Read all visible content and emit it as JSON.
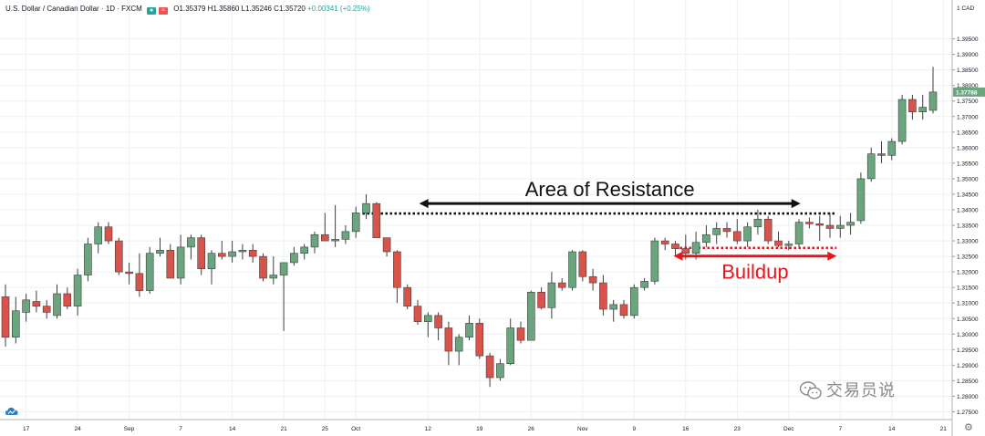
{
  "header": {
    "symbol": "U.S. Dollar / Canadian Dollar · 1D · FXCM",
    "ohlc": "O1.35379 H1.35860 L1.35246 C1.35720",
    "change": "+0.00341 (+0.25%)"
  },
  "icons": {
    "logo": "tradingview-cloud-icon",
    "settings": "gear-icon",
    "watermark": "wechat-icon"
  },
  "watermark": "交易员说",
  "colors": {
    "up": "#6aa57e",
    "down": "#d9534a",
    "candle_border": "#3f3f3f",
    "resistance": "#111111",
    "buildup": "#e8141b",
    "current_price_tag": "#6aa57e"
  },
  "chart_data": {
    "type": "candlestick",
    "currency_label": "CAD",
    "price_axis": {
      "range": [
        1.2725,
        1.4075
      ],
      "ticks": [
        "1.27500",
        "1.28000",
        "1.28500",
        "1.29000",
        "1.29500",
        "1.30000",
        "1.30500",
        "1.31000",
        "1.31500",
        "1.32000",
        "1.32500",
        "1.33000",
        "1.33500",
        "1.34000",
        "1.34500",
        "1.35000",
        "1.35500",
        "1.36000",
        "1.36500",
        "1.37000",
        "1.37500",
        "1.38000",
        "1.38500",
        "1.39000",
        "1.39500"
      ],
      "current_price_label": "1.37788",
      "current_price": 1.37788
    },
    "x_axis_labels": [
      {
        "label": "17",
        "index": 2
      },
      {
        "label": "24",
        "index": 7
      },
      {
        "label": "Sep",
        "index": 12
      },
      {
        "label": "7",
        "index": 17
      },
      {
        "label": "14",
        "index": 22
      },
      {
        "label": "21",
        "index": 27
      },
      {
        "label": "25",
        "index": 31
      },
      {
        "label": "Oct",
        "index": 34
      },
      {
        "label": "12",
        "index": 41
      },
      {
        "label": "19",
        "index": 46
      },
      {
        "label": "26",
        "index": 51
      },
      {
        "label": "Nov",
        "index": 56
      },
      {
        "label": "9",
        "index": 61
      },
      {
        "label": "16",
        "index": 66
      },
      {
        "label": "23",
        "index": 71
      },
      {
        "label": "Dec",
        "index": 76
      },
      {
        "label": "7",
        "index": 81
      },
      {
        "label": "14",
        "index": 86
      },
      {
        "label": "21",
        "index": 91
      }
    ],
    "candles": [
      [
        1.312,
        1.316,
        1.296,
        1.299
      ],
      [
        1.299,
        1.312,
        1.297,
        1.3075
      ],
      [
        1.307,
        1.313,
        1.304,
        1.311
      ],
      [
        1.3105,
        1.314,
        1.307,
        1.309
      ],
      [
        1.309,
        1.311,
        1.305,
        1.307
      ],
      [
        1.306,
        1.316,
        1.305,
        1.313
      ],
      [
        1.313,
        1.315,
        1.308,
        1.309
      ],
      [
        1.309,
        1.321,
        1.306,
        1.319
      ],
      [
        1.319,
        1.331,
        1.317,
        1.329
      ],
      [
        1.329,
        1.336,
        1.326,
        1.3345
      ],
      [
        1.3345,
        1.336,
        1.329,
        1.33
      ],
      [
        1.33,
        1.331,
        1.319,
        1.32
      ],
      [
        1.32,
        1.323,
        1.316,
        1.3195
      ],
      [
        1.3195,
        1.326,
        1.312,
        1.314
      ],
      [
        1.314,
        1.328,
        1.313,
        1.326
      ],
      [
        1.326,
        1.331,
        1.325,
        1.327
      ],
      [
        1.327,
        1.329,
        1.318,
        1.318
      ],
      [
        1.318,
        1.332,
        1.316,
        1.328
      ],
      [
        1.328,
        1.332,
        1.324,
        1.331
      ],
      [
        1.331,
        1.332,
        1.319,
        1.321
      ],
      [
        1.321,
        1.327,
        1.316,
        1.326
      ],
      [
        1.326,
        1.33,
        1.324,
        1.325
      ],
      [
        1.325,
        1.33,
        1.323,
        1.3265
      ],
      [
        1.3265,
        1.329,
        1.324,
        1.327
      ],
      [
        1.327,
        1.329,
        1.323,
        1.325
      ],
      [
        1.325,
        1.326,
        1.317,
        1.318
      ],
      [
        1.318,
        1.325,
        1.316,
        1.319
      ],
      [
        1.319,
        1.323,
        1.301,
        1.323
      ],
      [
        1.323,
        1.328,
        1.322,
        1.326
      ],
      [
        1.326,
        1.329,
        1.324,
        1.328
      ],
      [
        1.328,
        1.333,
        1.326,
        1.332
      ],
      [
        1.332,
        1.339,
        1.33,
        1.33
      ],
      [
        1.33,
        1.3415,
        1.328,
        1.3305
      ],
      [
        1.3305,
        1.335,
        1.329,
        1.333
      ],
      [
        1.333,
        1.341,
        1.331,
        1.339
      ],
      [
        1.339,
        1.345,
        1.337,
        1.342
      ],
      [
        1.342,
        1.3425,
        1.331,
        1.331
      ],
      [
        1.331,
        1.331,
        1.325,
        1.3265
      ],
      [
        1.3265,
        1.327,
        1.31,
        1.315
      ],
      [
        1.315,
        1.316,
        1.308,
        1.309
      ],
      [
        1.309,
        1.311,
        1.303,
        1.304
      ],
      [
        1.304,
        1.307,
        1.299,
        1.306
      ],
      [
        1.306,
        1.307,
        1.298,
        1.302
      ],
      [
        1.302,
        1.304,
        1.29,
        1.2945
      ],
      [
        1.2945,
        1.3,
        1.29,
        1.299
      ],
      [
        1.299,
        1.306,
        1.298,
        1.3035
      ],
      [
        1.3035,
        1.305,
        1.292,
        1.293
      ],
      [
        1.293,
        1.294,
        1.283,
        1.286
      ],
      [
        1.286,
        1.292,
        1.285,
        1.2905
      ],
      [
        1.2905,
        1.305,
        1.29,
        1.302
      ],
      [
        1.302,
        1.304,
        1.297,
        1.298
      ],
      [
        1.298,
        1.314,
        1.298,
        1.3135
      ],
      [
        1.3135,
        1.315,
        1.308,
        1.3085
      ],
      [
        1.3085,
        1.32,
        1.305,
        1.3165
      ],
      [
        1.3165,
        1.318,
        1.314,
        1.315
      ],
      [
        1.315,
        1.327,
        1.314,
        1.3265
      ],
      [
        1.3265,
        1.327,
        1.317,
        1.3185
      ],
      [
        1.3185,
        1.321,
        1.314,
        1.3165
      ],
      [
        1.3165,
        1.319,
        1.306,
        1.308
      ],
      [
        1.308,
        1.311,
        1.304,
        1.3095
      ],
      [
        1.3095,
        1.311,
        1.305,
        1.306
      ],
      [
        1.306,
        1.316,
        1.305,
        1.315
      ],
      [
        1.315,
        1.318,
        1.314,
        1.317
      ],
      [
        1.317,
        1.331,
        1.316,
        1.33
      ],
      [
        1.33,
        1.331,
        1.327,
        1.329
      ],
      [
        1.329,
        1.33,
        1.325,
        1.3275
      ],
      [
        1.3275,
        1.332,
        1.324,
        1.326
      ],
      [
        1.326,
        1.333,
        1.324,
        1.3295
      ],
      [
        1.3295,
        1.335,
        1.328,
        1.332
      ],
      [
        1.332,
        1.336,
        1.329,
        1.334
      ],
      [
        1.334,
        1.336,
        1.331,
        1.333
      ],
      [
        1.333,
        1.337,
        1.329,
        1.33
      ],
      [
        1.33,
        1.336,
        1.328,
        1.3345
      ],
      [
        1.3345,
        1.34,
        1.332,
        1.337
      ],
      [
        1.337,
        1.338,
        1.329,
        1.33
      ],
      [
        1.33,
        1.333,
        1.328,
        1.3285
      ],
      [
        1.3285,
        1.33,
        1.327,
        1.329
      ],
      [
        1.329,
        1.337,
        1.328,
        1.336
      ],
      [
        1.336,
        1.3375,
        1.334,
        1.3355
      ],
      [
        1.3355,
        1.338,
        1.33,
        1.335
      ],
      [
        1.335,
        1.339,
        1.331,
        1.334
      ],
      [
        1.334,
        1.338,
        1.331,
        1.335
      ],
      [
        1.335,
        1.339,
        1.332,
        1.336
      ],
      [
        1.3365,
        1.352,
        1.3355,
        1.35
      ],
      [
        1.35,
        1.36,
        1.349,
        1.358
      ],
      [
        1.358,
        1.362,
        1.355,
        1.3575
      ],
      [
        1.3575,
        1.363,
        1.356,
        1.362
      ],
      [
        1.362,
        1.377,
        1.361,
        1.3755
      ],
      [
        1.3755,
        1.377,
        1.369,
        1.3715
      ],
      [
        1.3715,
        1.377,
        1.369,
        1.373
      ],
      [
        1.372,
        1.386,
        1.371,
        1.3779
      ]
    ],
    "annotations": {
      "resistance": {
        "text": "Area of Resistance",
        "price": 1.3388,
        "line_from_index": 35,
        "line_to_index": 81,
        "arrow_from_index": 40.5,
        "arrow_to_index": 77.5
      },
      "buildup": {
        "text": "Buildup",
        "price": 1.32775,
        "line_from_index": 65,
        "line_to_index": 81,
        "arrow_from_index": 65,
        "arrow_to_index": 81
      }
    }
  }
}
